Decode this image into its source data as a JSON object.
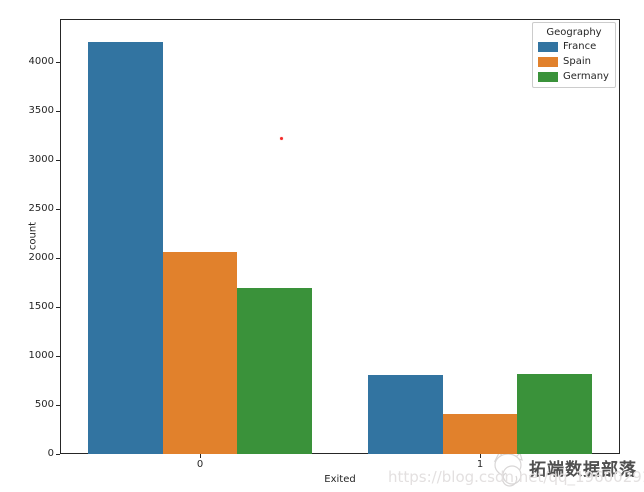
{
  "chart_data": {
    "type": "bar",
    "title": "",
    "xlabel": "Exited",
    "ylabel": "count",
    "categories": [
      "0",
      "1"
    ],
    "series": [
      {
        "name": "France",
        "color": "#3274a1",
        "values": [
          4204,
          810
        ]
      },
      {
        "name": "Spain",
        "color": "#e1812c",
        "values": [
          2064,
          413
        ]
      },
      {
        "name": "Germany",
        "color": "#3a923a",
        "values": [
          1695,
          814
        ]
      }
    ],
    "legend": {
      "title": "Geography",
      "position": "upper right"
    },
    "ylim": [
      0,
      4440
    ],
    "yticks": [
      0,
      500,
      1000,
      1500,
      2000,
      2500,
      3000,
      3500,
      4000
    ],
    "grid": false,
    "background": "#ffffff",
    "spine_color": "#262626"
  },
  "watermarks": {
    "brand_text": "拓端数据部落",
    "url_text": "https://blog.csdn.net/qq_19600291",
    "brand_logo": "cat-face-logo-icon",
    "stray_dot_color": "#f32b2b"
  }
}
